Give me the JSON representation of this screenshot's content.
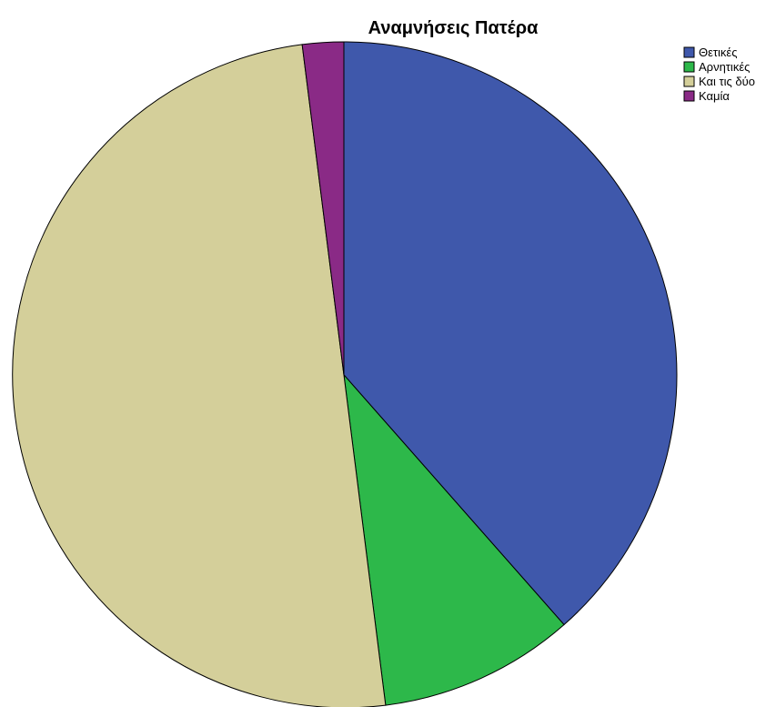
{
  "chart_data": {
    "type": "pie",
    "title": "Αναμνήσεις Πατέρα",
    "legend_position": "top-right",
    "categories": [
      "Θετικές",
      "Αρνητικές",
      "Και τις δύο",
      "Καμία"
    ],
    "values": [
      38.5,
      9.5,
      50.0,
      2.0
    ],
    "colors": [
      "#3f58ab",
      "#2db84a",
      "#d4cf9a",
      "#8a2a86"
    ],
    "start": "12 o'clock",
    "direction": "clockwise"
  }
}
